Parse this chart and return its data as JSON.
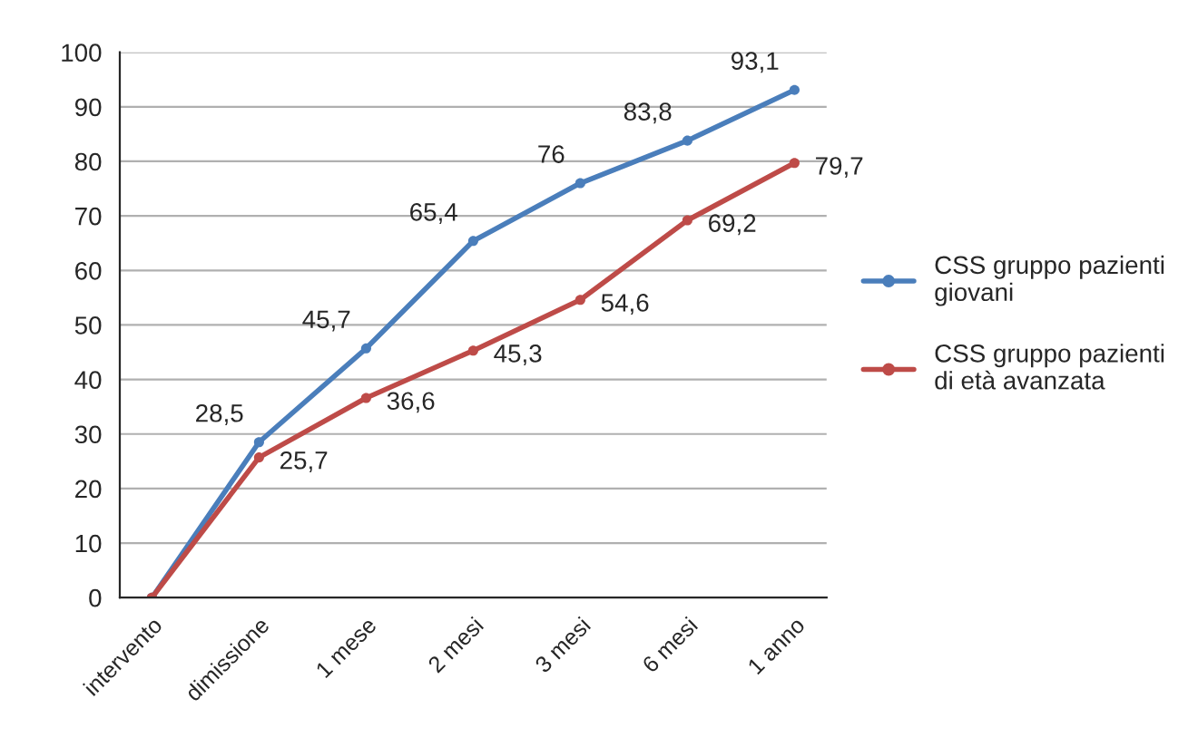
{
  "chart_data": {
    "type": "line",
    "categories": [
      "intervento",
      "dimissione",
      "1 mese",
      "2 mesi",
      "3 mesi",
      "6 mesi",
      "1 anno"
    ],
    "series": [
      {
        "name": "CSS gruppo pazienti giovani",
        "color": "#4a7ebb",
        "values": [
          0,
          28.5,
          45.7,
          65.4,
          76,
          83.8,
          93.1
        ],
        "value_labels": [
          null,
          "28,5",
          "45,7",
          "65,4",
          "76",
          "83,8",
          "93,1"
        ]
      },
      {
        "name": "CSS gruppo pazienti di età avanzata",
        "color": "#be4b48",
        "values": [
          0,
          25.7,
          36.6,
          45.3,
          54.6,
          69.2,
          79.7
        ],
        "value_labels": [
          null,
          "25,7",
          "36,6",
          "45,3",
          "54,6",
          "69,2",
          "79,7"
        ]
      }
    ],
    "ylim": [
      0,
      100
    ],
    "yticks": [
      0,
      10,
      20,
      30,
      40,
      50,
      60,
      70,
      80,
      90,
      100
    ],
    "grid": "y",
    "legend": "right",
    "marker": "circle",
    "line_style": "solid"
  }
}
